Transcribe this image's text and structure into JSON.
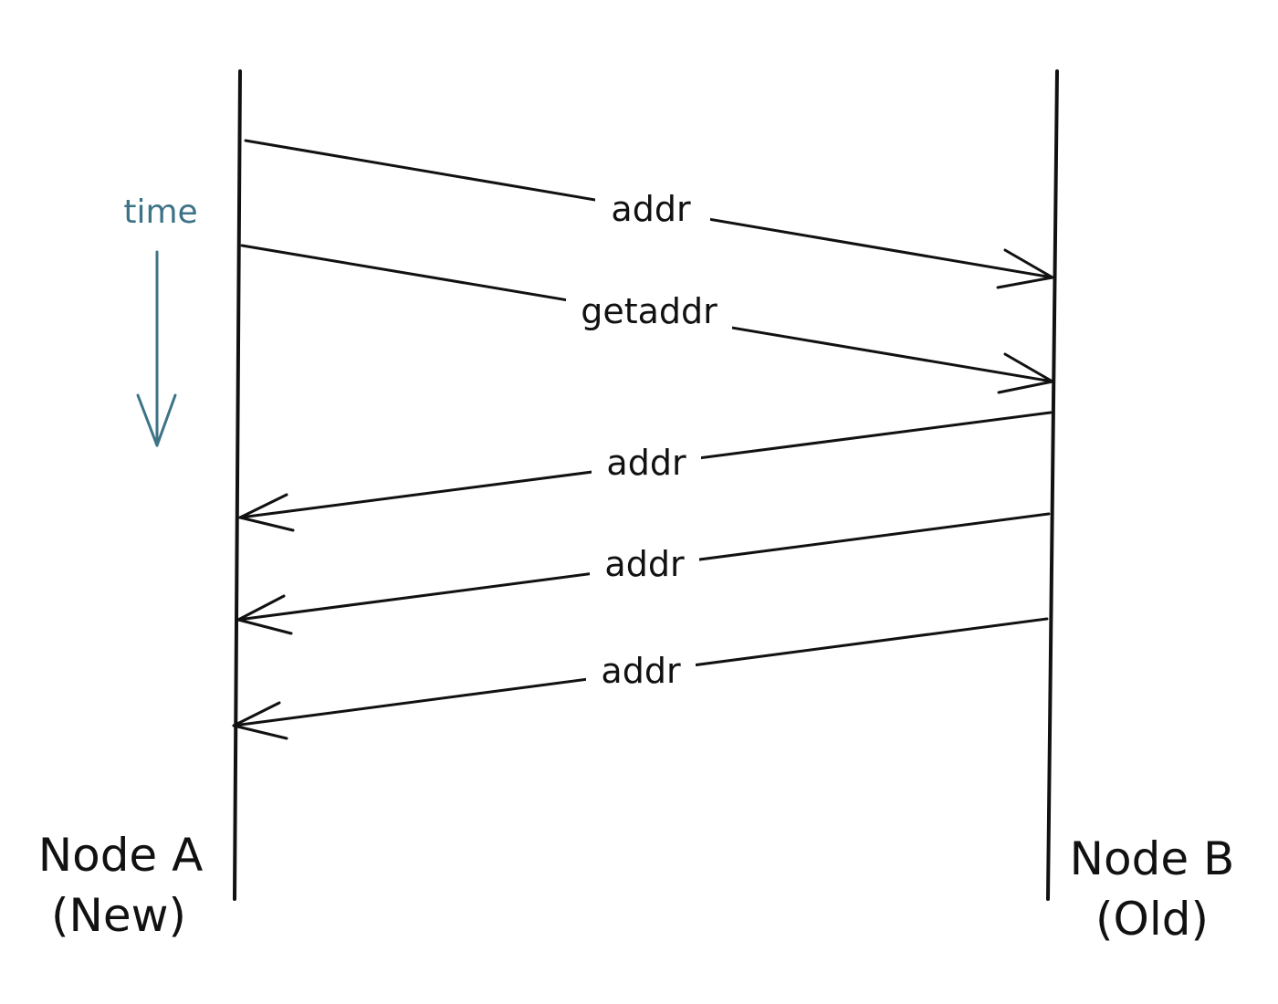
{
  "nodes": {
    "a": {
      "name": "Node A",
      "subtitle": "(New)"
    },
    "b": {
      "name": "Node B",
      "subtitle": "(Old)"
    }
  },
  "time_label": "time",
  "messages": [
    {
      "label": "addr",
      "direction": "A-to-B"
    },
    {
      "label": "getaddr",
      "direction": "A-to-B"
    },
    {
      "label": "addr",
      "direction": "B-to-A"
    },
    {
      "label": "addr",
      "direction": "B-to-A"
    },
    {
      "label": "addr",
      "direction": "B-to-A"
    }
  ],
  "colors": {
    "ink": "#111111",
    "time_accent": "#3d7386",
    "background": "#ffffff"
  }
}
